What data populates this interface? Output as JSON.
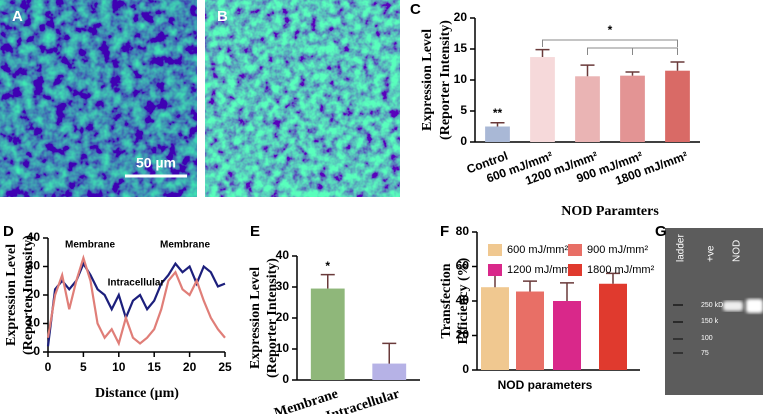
{
  "panel_labels": [
    "A",
    "B",
    "C",
    "D",
    "E",
    "F",
    "G"
  ],
  "scale_bar": "50 µm",
  "chart_data": [
    {
      "type": "bar",
      "y_label": [
        "Expression Level",
        "(Reporter Intensity)"
      ],
      "x_label": "NOD Paramters",
      "categories": [
        "Control",
        "600 mJ/mm²",
        "1200 mJ/mm²",
        "900 mJ/mm²",
        "1800 mJ/mm²"
      ],
      "values": [
        2.5,
        13.7,
        10.6,
        10.7,
        11.5
      ],
      "errors": [
        0.6,
        1.2,
        1.8,
        0.6,
        1.4
      ],
      "colors": [
        "#a9b8d6",
        "#f6d9da",
        "#eab4b4",
        "#e39494",
        "#d96a66"
      ],
      "annotations": [
        "**",
        "*"
      ],
      "ylim": [
        0,
        20
      ],
      "yticks": [
        0,
        5,
        10,
        15,
        20
      ]
    },
    {
      "type": "line",
      "y_label": [
        "Expression Level",
        "(Reporter Intensity)"
      ],
      "x_label": "Distance (µm)",
      "x": [
        0,
        1,
        2,
        3,
        4,
        5,
        6,
        7,
        8,
        9,
        10,
        11,
        12,
        13,
        14,
        15,
        16,
        17,
        18,
        19,
        20,
        21,
        22,
        23,
        24,
        25
      ],
      "series": [
        {
          "color": "#1c1f7c",
          "values": [
            2,
            22,
            25,
            22,
            25,
            31,
            27,
            22,
            20,
            15,
            20,
            12,
            18,
            20,
            15,
            18,
            24,
            27,
            31,
            28,
            30,
            24,
            30,
            28,
            23,
            24
          ]
        },
        {
          "color": "#e07e78",
          "values": [
            5,
            20,
            27,
            15,
            25,
            33,
            25,
            10,
            5,
            8,
            3,
            12,
            5,
            3,
            5,
            8,
            15,
            25,
            28,
            22,
            20,
            25,
            18,
            12,
            8,
            5
          ]
        }
      ],
      "annotations": [
        "Membrane",
        "Membrane",
        "Intracellular"
      ],
      "xlim": [
        0,
        25
      ],
      "xticks": [
        0,
        5,
        10,
        15,
        20,
        25
      ],
      "ylim": [
        0,
        40
      ],
      "yticks": [
        0,
        10,
        20,
        30,
        40
      ]
    },
    {
      "type": "bar",
      "y_label": [
        "Expression Level",
        "(Reporter Intensity)"
      ],
      "categories": [
        "Membrane",
        "Intracellular"
      ],
      "values": [
        29.5,
        5.3
      ],
      "errors": [
        4.5,
        6.5
      ],
      "colors": [
        "#8fb77a",
        "#b6b2e6"
      ],
      "annotations": [
        "*"
      ],
      "ylim": [
        0,
        40
      ],
      "yticks": [
        0,
        10,
        20,
        30,
        40
      ]
    },
    {
      "type": "bar",
      "y_label": [
        "Transfection",
        "Efficiency (%)"
      ],
      "x_label": "NOD parameters",
      "series": [
        {
          "name": "600 mJ/mm²",
          "color": "#f0c890",
          "values": [
            48
          ],
          "errors": [
            13
          ]
        },
        {
          "name": "900 mJ/mm²",
          "color": "#e86f66",
          "values": [
            45.5
          ],
          "errors": [
            6
          ]
        },
        {
          "name": "1200 mJ/mm²",
          "color": "#d9288a",
          "values": [
            40
          ],
          "errors": [
            10.5
          ]
        },
        {
          "name": "1800 mJ/mm²",
          "color": "#e03a2e",
          "values": [
            50
          ],
          "errors": [
            6
          ]
        }
      ],
      "ylim": [
        0,
        80
      ],
      "yticks": [
        0,
        20,
        40,
        60,
        80
      ]
    }
  ],
  "gel": {
    "lanes": [
      "ladder",
      "+ve",
      "NOD"
    ],
    "markers": [
      "250 kD",
      "150 k",
      "100",
      "75"
    ]
  }
}
